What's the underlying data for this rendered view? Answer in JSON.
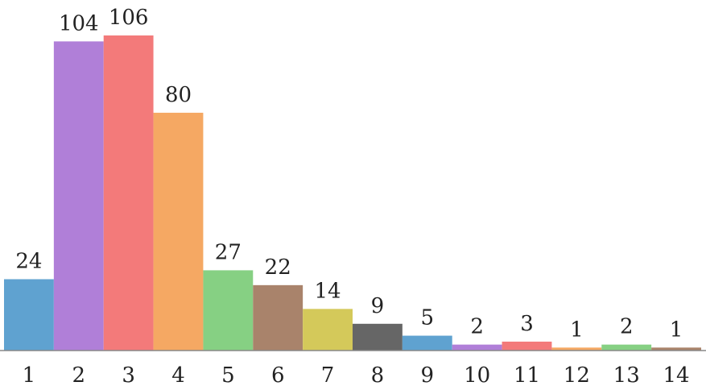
{
  "chart_data": {
    "type": "bar",
    "categories": [
      "1",
      "2",
      "3",
      "4",
      "5",
      "6",
      "7",
      "8",
      "9",
      "10",
      "11",
      "12",
      "13",
      "14"
    ],
    "values": [
      24,
      104,
      106,
      80,
      27,
      22,
      14,
      9,
      5,
      2,
      3,
      1,
      2,
      1
    ],
    "colors": [
      "#5fa2d0",
      "#b07fd8",
      "#f37a7a",
      "#f5a863",
      "#86d083",
      "#a9836b",
      "#d4c95a",
      "#666666",
      "#5fa2d0",
      "#b07fd8",
      "#f37a7a",
      "#f5a863",
      "#86d083",
      "#a9836b"
    ]
  }
}
